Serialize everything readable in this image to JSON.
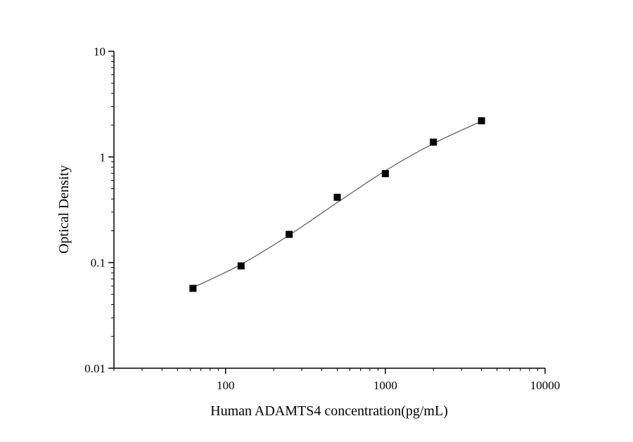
{
  "chart_data": {
    "type": "scatter",
    "xlabel": "Human ADAMTS4 concentration(pg/mL)",
    "ylabel": "Optical Density",
    "x_scale": "log",
    "y_scale": "log",
    "xlim": [
      20,
      10000
    ],
    "ylim": [
      0.01,
      10
    ],
    "x_ticks": [
      {
        "value": 100,
        "label": "100"
      },
      {
        "value": 1000,
        "label": "1000"
      },
      {
        "value": 10000,
        "label": "10000"
      }
    ],
    "y_ticks": [
      {
        "value": 0.01,
        "label": "0.01"
      },
      {
        "value": 0.1,
        "label": "0.1"
      },
      {
        "value": 1,
        "label": "1"
      },
      {
        "value": 10,
        "label": "10"
      }
    ],
    "grid": false,
    "legend": "none",
    "series": [
      {
        "marker": "square",
        "color": "#000000",
        "x": [
          62.5,
          125,
          250,
          500,
          1000,
          2000,
          4000
        ],
        "y": [
          0.057,
          0.093,
          0.185,
          0.415,
          0.695,
          1.38,
          2.2
        ]
      }
    ],
    "fit_curve": {
      "color": "#555555",
      "x": [
        62.5,
        125,
        250,
        500,
        1000,
        2000,
        4000
      ],
      "y": [
        0.058,
        0.096,
        0.182,
        0.37,
        0.74,
        1.34,
        2.18
      ]
    }
  }
}
